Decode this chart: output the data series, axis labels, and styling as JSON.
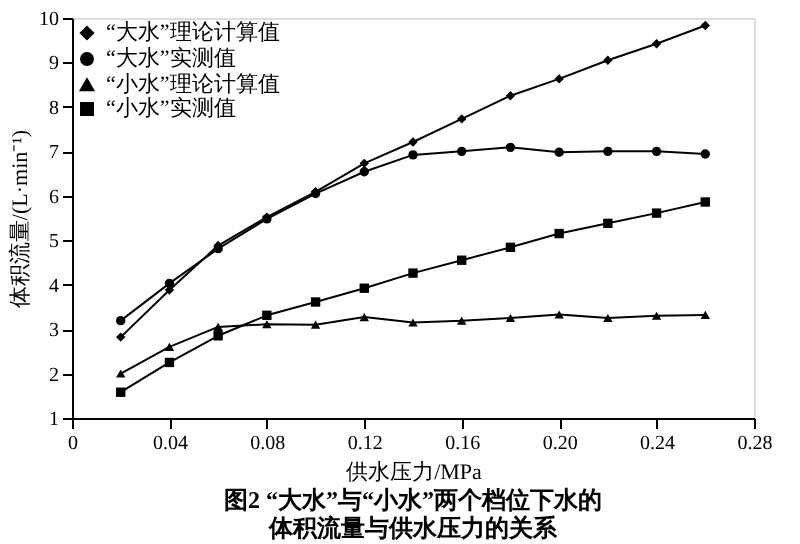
{
  "chart_data": {
    "type": "line",
    "title": "图2 “大水”与“小水”两个档位下水的",
    "subtitle": "体积流量与供水压力的关系",
    "xlabel": "供水压力/MPa",
    "ylabel": "体积流量/(L·min⁻¹)",
    "x": [
      0.02,
      0.04,
      0.06,
      0.08,
      0.1,
      0.12,
      0.14,
      0.16,
      0.18,
      0.2,
      0.22,
      0.24,
      0.26
    ],
    "series": [
      {
        "name": "“大水”理论计算值",
        "color": "#000000",
        "marker": "diamond",
        "values": [
          2.82,
          3.88,
          4.88,
          5.52,
          6.09,
          6.73,
          7.21,
          7.73,
          8.25,
          8.63,
          9.05,
          9.42,
          9.83
        ]
      },
      {
        "name": "“大水”实测值",
        "color": "#000000",
        "marker": "circle",
        "values": [
          3.19,
          4.03,
          4.81,
          5.48,
          6.05,
          6.54,
          6.92,
          7.0,
          7.09,
          6.98,
          7.0,
          7.0,
          6.94
        ]
      },
      {
        "name": "“小水”理论计算值",
        "color": "#000000",
        "marker": "triangle",
        "values": [
          2.0,
          2.6,
          3.05,
          3.11,
          3.1,
          3.27,
          3.15,
          3.19,
          3.25,
          3.33,
          3.25,
          3.3,
          3.32
        ]
      },
      {
        "name": "“小水”实测值",
        "color": "#000000",
        "marker": "square",
        "values": [
          1.58,
          2.25,
          2.85,
          3.31,
          3.61,
          3.92,
          4.26,
          4.55,
          4.84,
          5.15,
          5.38,
          5.61,
          5.86
        ]
      }
    ],
    "xlim": [
      0,
      0.28
    ],
    "xticks": [
      0,
      {
        "value": 0.04,
        "label": "0.04"
      },
      {
        "value": 0.08,
        "label": "0.08"
      },
      {
        "value": 0.12,
        "label": "0.12"
      },
      {
        "value": 0.16,
        "label": "0.16"
      },
      {
        "value": 0.2,
        "label": "0.20"
      },
      {
        "value": 0.24,
        "label": "0.24"
      },
      {
        "value": 0.28,
        "label": "0.28"
      }
    ],
    "ylim": [
      1,
      10
    ],
    "yticks": [
      1,
      2,
      3,
      4,
      5,
      6,
      7,
      8,
      9,
      10
    ],
    "grid": false,
    "legend": "top left",
    "line_style": "solid"
  }
}
